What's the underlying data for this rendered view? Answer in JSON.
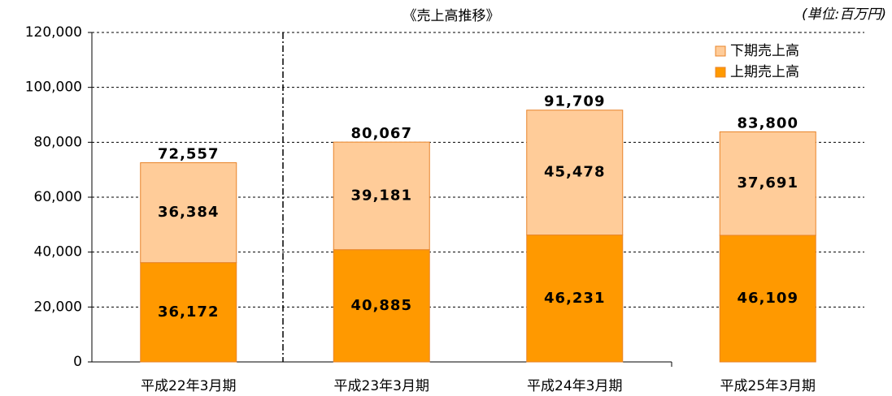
{
  "chart_data": {
    "type": "stacked_bar",
    "title": "《売上高推移》",
    "annotation": "(単位:百万円)",
    "categories": [
      "平成22年3月期",
      "平成23年3月期",
      "平成24年3月期",
      "平成25年3月期"
    ],
    "series": [
      {
        "name": "上期売上高",
        "color": "#ff9900",
        "values": [
          36172,
          40885,
          46231,
          46109
        ],
        "value_labels": [
          "36,172",
          "40,885",
          "46,231",
          "46,109"
        ]
      },
      {
        "name": "下期売上高",
        "color": "#ffcc99",
        "values": [
          36384,
          39181,
          45478,
          37691
        ],
        "value_labels": [
          "36,384",
          "39,181",
          "45,478",
          "37,691"
        ]
      }
    ],
    "totals": [
      72557,
      80067,
      91709,
      83800
    ],
    "total_labels": [
      "72,557",
      "80,067",
      "91,709",
      "83,800"
    ],
    "ylim": [
      0,
      120000
    ],
    "yticks": [
      {
        "value": 0,
        "label": "0"
      },
      {
        "value": 20000,
        "label": "20,000"
      },
      {
        "value": 40000,
        "label": "40,000"
      },
      {
        "value": 60000,
        "label": "60,000"
      },
      {
        "value": 80000,
        "label": "80,000"
      },
      {
        "value": 100000,
        "label": "100,000"
      },
      {
        "value": 120000,
        "label": "120,000"
      }
    ],
    "grid": true
  }
}
